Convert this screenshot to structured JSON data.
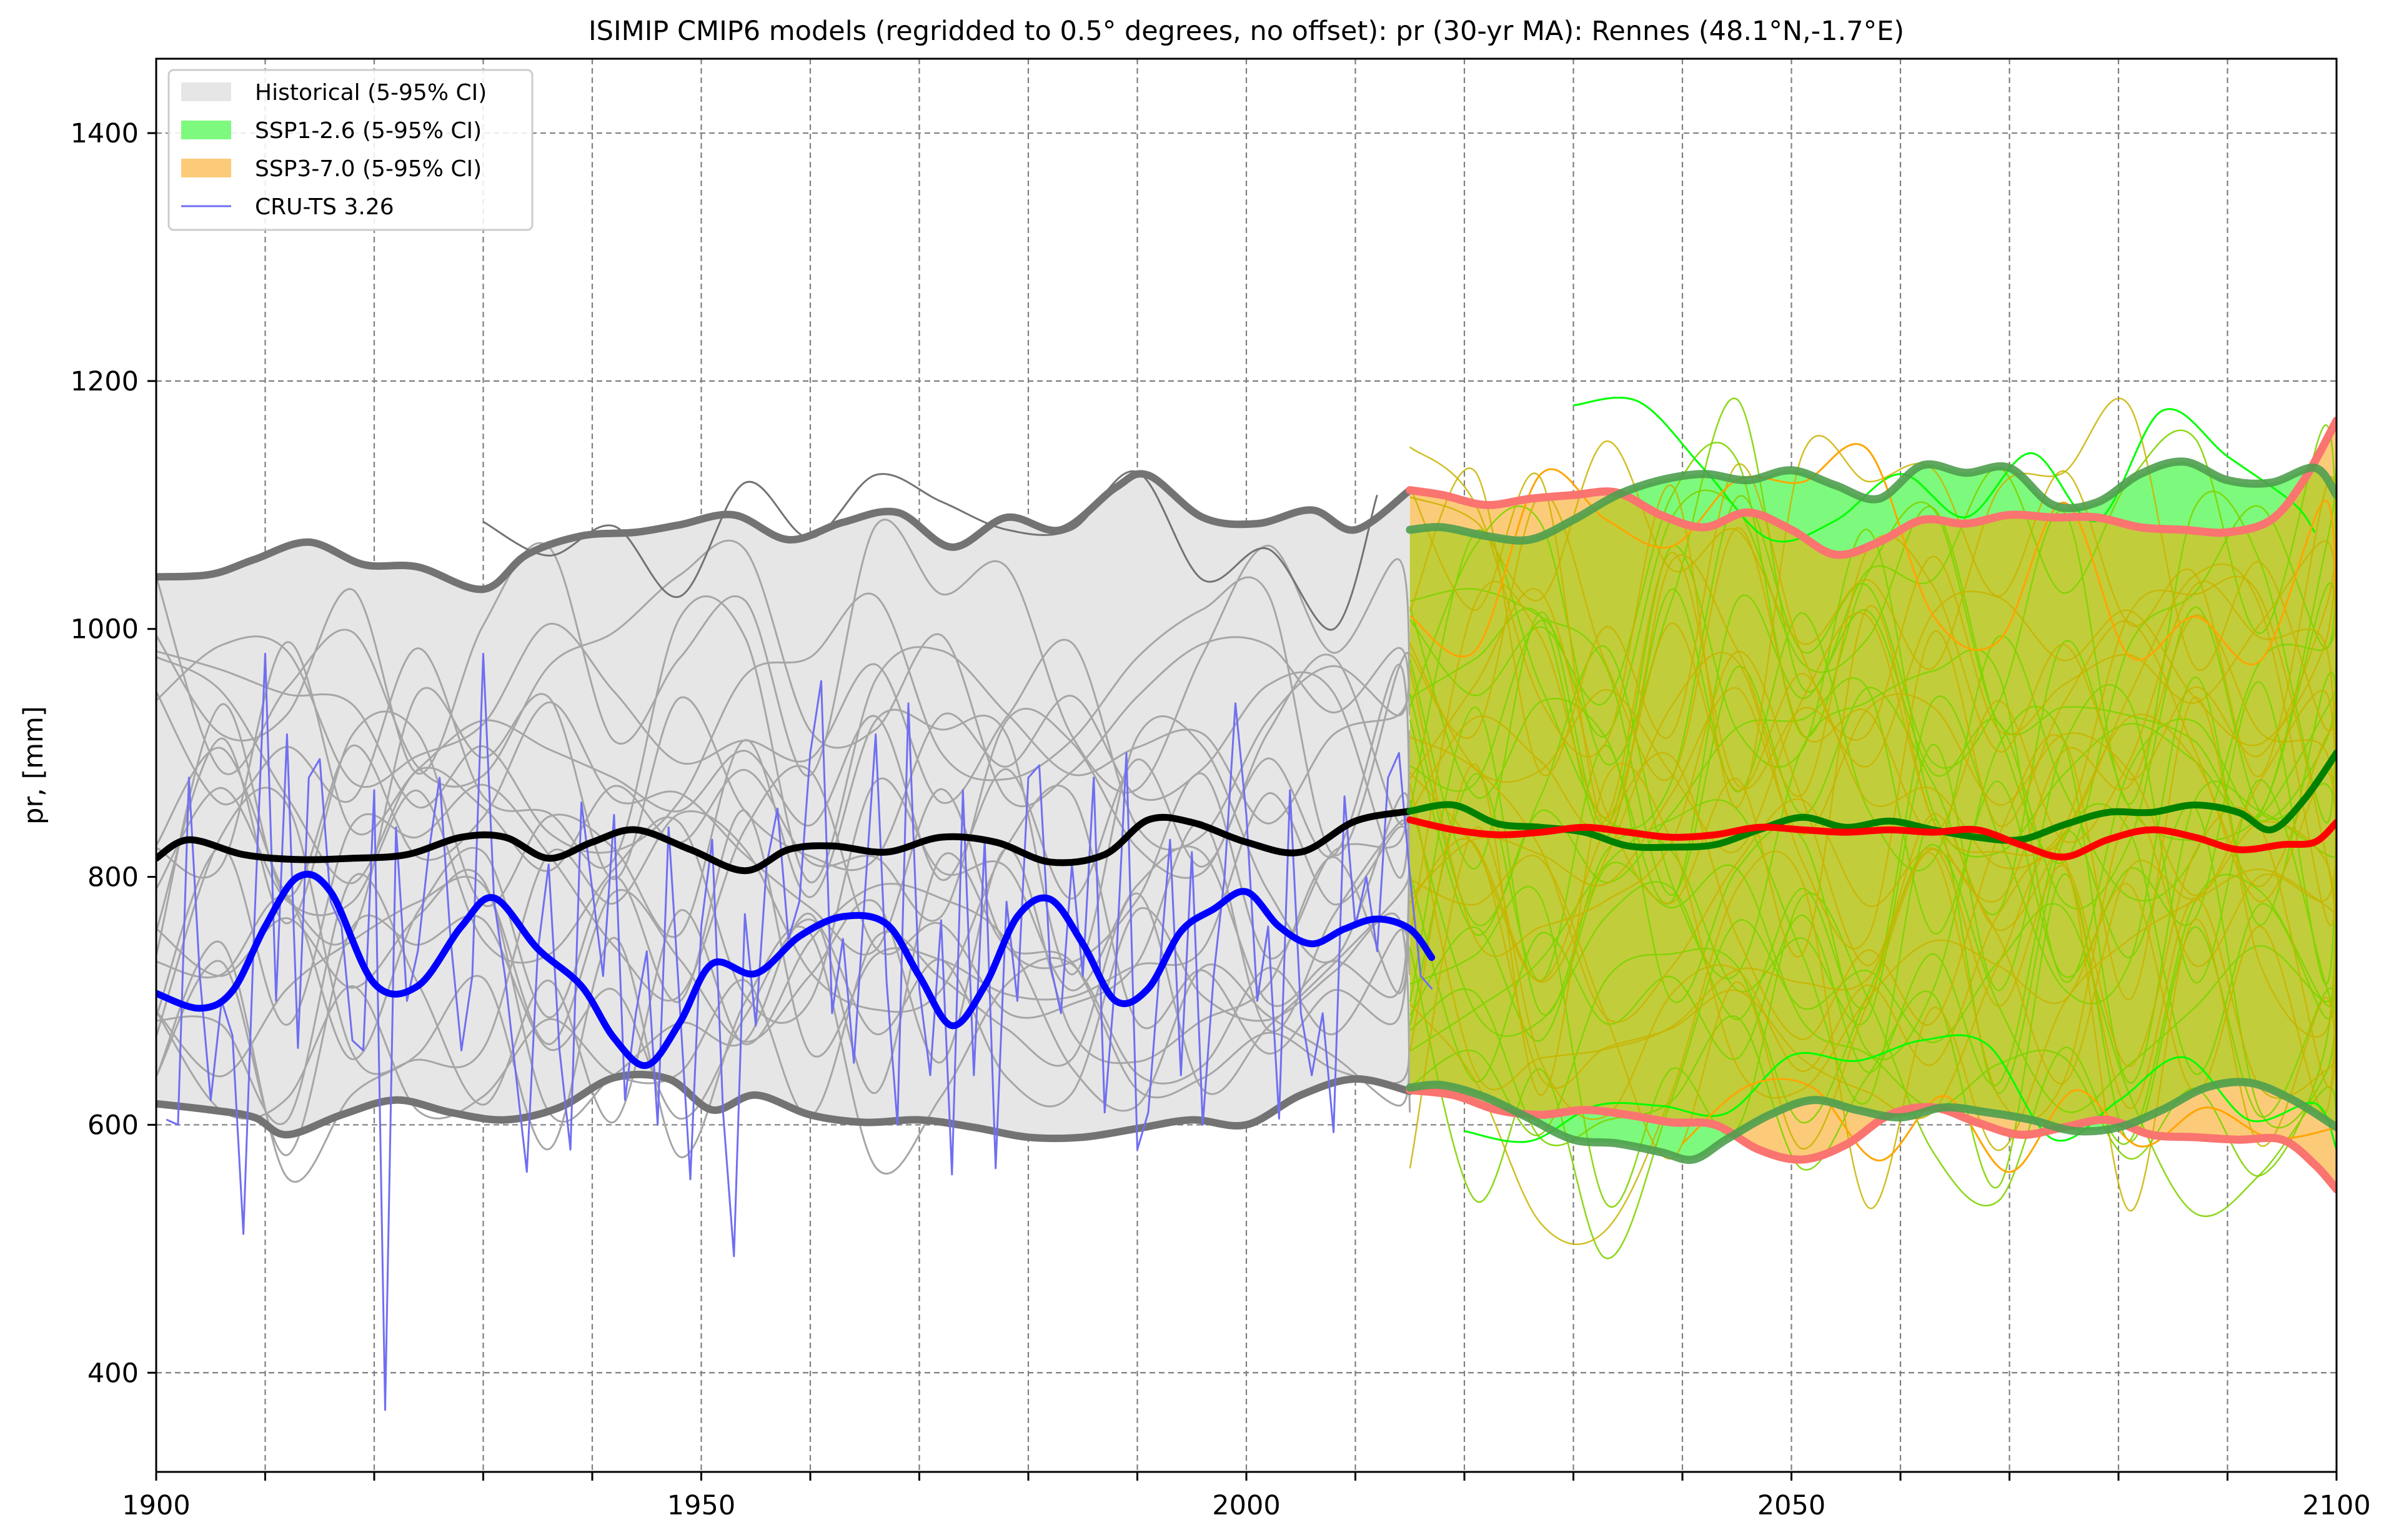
{
  "chart_data": {
    "type": "line",
    "title": "ISIMIP CMIP6 models (regridded to 0.5° degrees, no offset): pr (30-yr MA): Rennes (48.1°N,-1.7°E)",
    "xlabel": "",
    "ylabel": "pr, [mm]",
    "xlim": [
      1900,
      2100
    ],
    "ylim": [
      320,
      1460
    ],
    "x_ticks": [
      1900,
      1950,
      2000,
      2050,
      2100
    ],
    "y_ticks": [
      400,
      600,
      800,
      1000,
      1200,
      1400
    ],
    "grid": true,
    "legend_position": "top-left",
    "legend": [
      {
        "label": "Historical (5-95% CI)",
        "kind": "patch",
        "color": "#e6e6e6"
      },
      {
        "label": "SSP1-2.6 (5-95% CI)",
        "kind": "patch",
        "color": "#7dfa7d"
      },
      {
        "label": "SSP3-7.0 (5-95% CI)",
        "kind": "patch",
        "color": "#fccb79"
      },
      {
        "label": "CRU-TS 3.26",
        "kind": "line",
        "color": "#6f6ff2"
      }
    ],
    "colors": {
      "historical_fill": "#e6e6e6",
      "historical_bound": "#737373",
      "historical_mean": "#000000",
      "historical_member": "#a6a6a6",
      "ssp126_fill": "#7dfa7d",
      "ssp126_bound": "#4f9f4f",
      "ssp126_mean": "#008000",
      "ssp126_member": "#00ff00",
      "ssp370_fill": "#fccb79",
      "ssp370_bound": "#fa7470",
      "ssp370_mean": "#ff0000",
      "ssp370_member": "#ffa500",
      "overlap_fill": "#c2cd3c",
      "cru_annual": "#6f6ff2",
      "cru_smooth": "#0000ff"
    },
    "series": [
      {
        "name": "Historical (5-95% CI)",
        "role": "hist_upper",
        "x": [
          1900,
          1905,
          1909,
          1914,
          1919,
          1924,
          1930,
          1934,
          1939,
          1944,
          1948,
          1953,
          1958,
          1963,
          1968,
          1973,
          1978,
          1983,
          1988,
          1991,
          1996,
          2001,
          2006,
          2010,
          2015
        ],
        "y": [
          1042,
          1044,
          1056,
          1070,
          1052,
          1050,
          1032,
          1060,
          1075,
          1078,
          1084,
          1092,
          1072,
          1086,
          1094,
          1066,
          1090,
          1080,
          1114,
          1124,
          1090,
          1085,
          1096,
          1080,
          1112
        ]
      },
      {
        "name": "Historical (5-95% CI)",
        "role": "hist_lower",
        "x": [
          1900,
          1905,
          1909,
          1912,
          1917,
          1922,
          1927,
          1932,
          1937,
          1942,
          1947,
          1951,
          1955,
          1960,
          1965,
          1970,
          1975,
          1980,
          1985,
          1990,
          1995,
          2000,
          2005,
          2010,
          2015
        ],
        "y": [
          617,
          612,
          606,
          592,
          608,
          620,
          610,
          604,
          614,
          638,
          637,
          612,
          624,
          608,
          602,
          604,
          598,
          590,
          590,
          597,
          604,
          600,
          624,
          637,
          627
        ]
      },
      {
        "name": "Historical mean",
        "role": "hist_mean",
        "x": [
          1900,
          1903,
          1908,
          1913,
          1918,
          1923,
          1928,
          1932,
          1936,
          1940,
          1944,
          1949,
          1954,
          1958,
          1962,
          1967,
          1972,
          1977,
          1982,
          1987,
          1991,
          1995,
          2000,
          2005,
          2010,
          2015
        ],
        "y": [
          815,
          830,
          818,
          814,
          815,
          818,
          832,
          832,
          815,
          828,
          838,
          822,
          805,
          822,
          825,
          820,
          832,
          828,
          812,
          818,
          846,
          844,
          828,
          820,
          845,
          853
        ]
      },
      {
        "name": "SSP1-2.6 (5-95% CI)",
        "role": "ssp126_upper",
        "x": [
          2015,
          2018,
          2022,
          2026,
          2030,
          2034,
          2038,
          2042,
          2046,
          2050,
          2054,
          2058,
          2062,
          2066,
          2070,
          2074,
          2078,
          2082,
          2086,
          2090,
          2094,
          2098,
          2100
        ],
        "y": [
          1080,
          1082,
          1075,
          1072,
          1088,
          1108,
          1120,
          1125,
          1120,
          1128,
          1116,
          1105,
          1132,
          1126,
          1130,
          1100,
          1102,
          1125,
          1135,
          1120,
          1118,
          1130,
          1108
        ]
      },
      {
        "name": "SSP1-2.6 (5-95% CI)",
        "role": "ssp126_lower",
        "x": [
          2015,
          2018,
          2022,
          2026,
          2030,
          2034,
          2038,
          2041,
          2044,
          2048,
          2052,
          2056,
          2060,
          2064,
          2068,
          2072,
          2076,
          2080,
          2084,
          2088,
          2092,
          2096,
          2100
        ],
        "y": [
          630,
          632,
          622,
          605,
          588,
          585,
          578,
          572,
          588,
          608,
          620,
          612,
          606,
          614,
          610,
          604,
          595,
          598,
          612,
          630,
          634,
          620,
          598
        ]
      },
      {
        "name": "SSP1-2.6 mean",
        "role": "ssp126_mean",
        "x": [
          2015,
          2019,
          2023,
          2027,
          2031,
          2035,
          2039,
          2043,
          2047,
          2051,
          2055,
          2059,
          2063,
          2067,
          2071,
          2075,
          2079,
          2083,
          2087,
          2091,
          2094,
          2097,
          2100
        ],
        "y": [
          853,
          858,
          843,
          840,
          836,
          825,
          824,
          826,
          838,
          848,
          840,
          845,
          838,
          832,
          830,
          842,
          852,
          852,
          858,
          852,
          838,
          862,
          900
        ]
      },
      {
        "name": "SSP3-7.0 (5-95% CI)",
        "role": "ssp370_upper",
        "x": [
          2015,
          2018,
          2022,
          2026,
          2030,
          2034,
          2038,
          2042,
          2046,
          2050,
          2054,
          2058,
          2062,
          2066,
          2070,
          2074,
          2078,
          2082,
          2086,
          2090,
          2094,
          2097,
          2100
        ],
        "y": [
          1112,
          1108,
          1100,
          1105,
          1108,
          1110,
          1092,
          1082,
          1094,
          1080,
          1060,
          1070,
          1088,
          1085,
          1092,
          1090,
          1090,
          1082,
          1080,
          1078,
          1088,
          1120,
          1168
        ]
      },
      {
        "name": "SSP3-7.0 (5-95% CI)",
        "role": "ssp370_lower",
        "x": [
          2015,
          2019,
          2023,
          2027,
          2031,
          2035,
          2039,
          2043,
          2047,
          2051,
          2055,
          2059,
          2063,
          2067,
          2071,
          2075,
          2079,
          2083,
          2087,
          2091,
          2095,
          2098,
          2100
        ],
        "y": [
          628,
          624,
          612,
          608,
          612,
          608,
          602,
          600,
          580,
          572,
          584,
          608,
          614,
          602,
          592,
          598,
          604,
          592,
          590,
          588,
          588,
          568,
          548
        ]
      },
      {
        "name": "SSP3-7.0 mean",
        "role": "ssp370_mean",
        "x": [
          2015,
          2019,
          2023,
          2027,
          2031,
          2035,
          2039,
          2043,
          2047,
          2051,
          2055,
          2059,
          2063,
          2067,
          2071,
          2075,
          2079,
          2083,
          2087,
          2091,
          2095,
          2098,
          2100
        ],
        "y": [
          846,
          838,
          834,
          836,
          840,
          836,
          832,
          834,
          840,
          838,
          836,
          838,
          836,
          838,
          826,
          816,
          830,
          838,
          832,
          822,
          826,
          828,
          844
        ]
      },
      {
        "name": "CRU-TS 3.26 smoothed",
        "role": "cru_smooth",
        "x": [
          1900,
          1904,
          1907,
          1910,
          1913,
          1916,
          1920,
          1924,
          1928,
          1931,
          1935,
          1939,
          1942,
          1945,
          1948,
          1951,
          1955,
          1959,
          1963,
          1967,
          1970,
          1973,
          1976,
          1979,
          1982,
          1985,
          1988,
          1991,
          1994,
          1997,
          2000,
          2003,
          2006,
          2009,
          2012,
          2015,
          2017
        ],
        "y": [
          706,
          694,
          708,
          760,
          800,
          788,
          714,
          712,
          760,
          783,
          742,
          712,
          670,
          648,
          682,
          730,
          722,
          752,
          768,
          762,
          720,
          680,
          712,
          768,
          782,
          746,
          700,
          710,
          756,
          774,
          788,
          760,
          746,
          758,
          766,
          758,
          735
        ]
      },
      {
        "name": "CRU-TS 3.26",
        "role": "cru_annual",
        "x": [
          1901,
          1902,
          1903,
          1904,
          1905,
          1906,
          1907,
          1908,
          1909,
          1910,
          1911,
          1912,
          1913,
          1914,
          1915,
          1916,
          1917,
          1918,
          1919,
          1920,
          1921,
          1922,
          1923,
          1924,
          1925,
          1926,
          1927,
          1928,
          1929,
          1930,
          1931,
          1932,
          1933,
          1934,
          1935,
          1936,
          1937,
          1938,
          1939,
          1940,
          1941,
          1942,
          1943,
          1944,
          1945,
          1946,
          1947,
          1948,
          1949,
          1950,
          1951,
          1952,
          1953,
          1954,
          1955,
          1956,
          1957,
          1958,
          1959,
          1960,
          1961,
          1962,
          1963,
          1964,
          1965,
          1966,
          1967,
          1968,
          1969,
          1970,
          1971,
          1972,
          1973,
          1974,
          1975,
          1976,
          1977,
          1978,
          1979,
          1980,
          1981,
          1982,
          1983,
          1984,
          1985,
          1986,
          1987,
          1988,
          1989,
          1990,
          1991,
          1992,
          1993,
          1994,
          1995,
          1996,
          1997,
          1998,
          1999,
          2000,
          2001,
          2002,
          2003,
          2004,
          2005,
          2006,
          2007,
          2008,
          2009,
          2010,
          2011,
          2012,
          2013,
          2014,
          2015,
          2016,
          2017
        ],
        "y": [
          604,
          600,
          880,
          720,
          620,
          700,
          672,
          512,
          760,
          980,
          700,
          915,
          662,
          880,
          895,
          780,
          760,
          668,
          660,
          870,
          370,
          840,
          700,
          740,
          820,
          880,
          750,
          660,
          720,
          980,
          780,
          720,
          640,
          562,
          740,
          810,
          660,
          580,
          860,
          790,
          720,
          850,
          620,
          690,
          740,
          600,
          840,
          700,
          556,
          760,
          830,
          610,
          494,
          770,
          680,
          810,
          855,
          750,
          780,
          900,
          958,
          690,
          750,
          650,
          785,
          915,
          715,
          600,
          940,
          710,
          640,
          765,
          560,
          870,
          640,
          830,
          565,
          780,
          700,
          880,
          890,
          730,
          690,
          810,
          720,
          880,
          610,
          720,
          900,
          580,
          610,
          720,
          830,
          640,
          820,
          600,
          720,
          800,
          940,
          850,
          700,
          760,
          605,
          870,
          690,
          640,
          690,
          594,
          865,
          760,
          800,
          740,
          880,
          900,
          800,
          720,
          710
        ]
      }
    ]
  }
}
